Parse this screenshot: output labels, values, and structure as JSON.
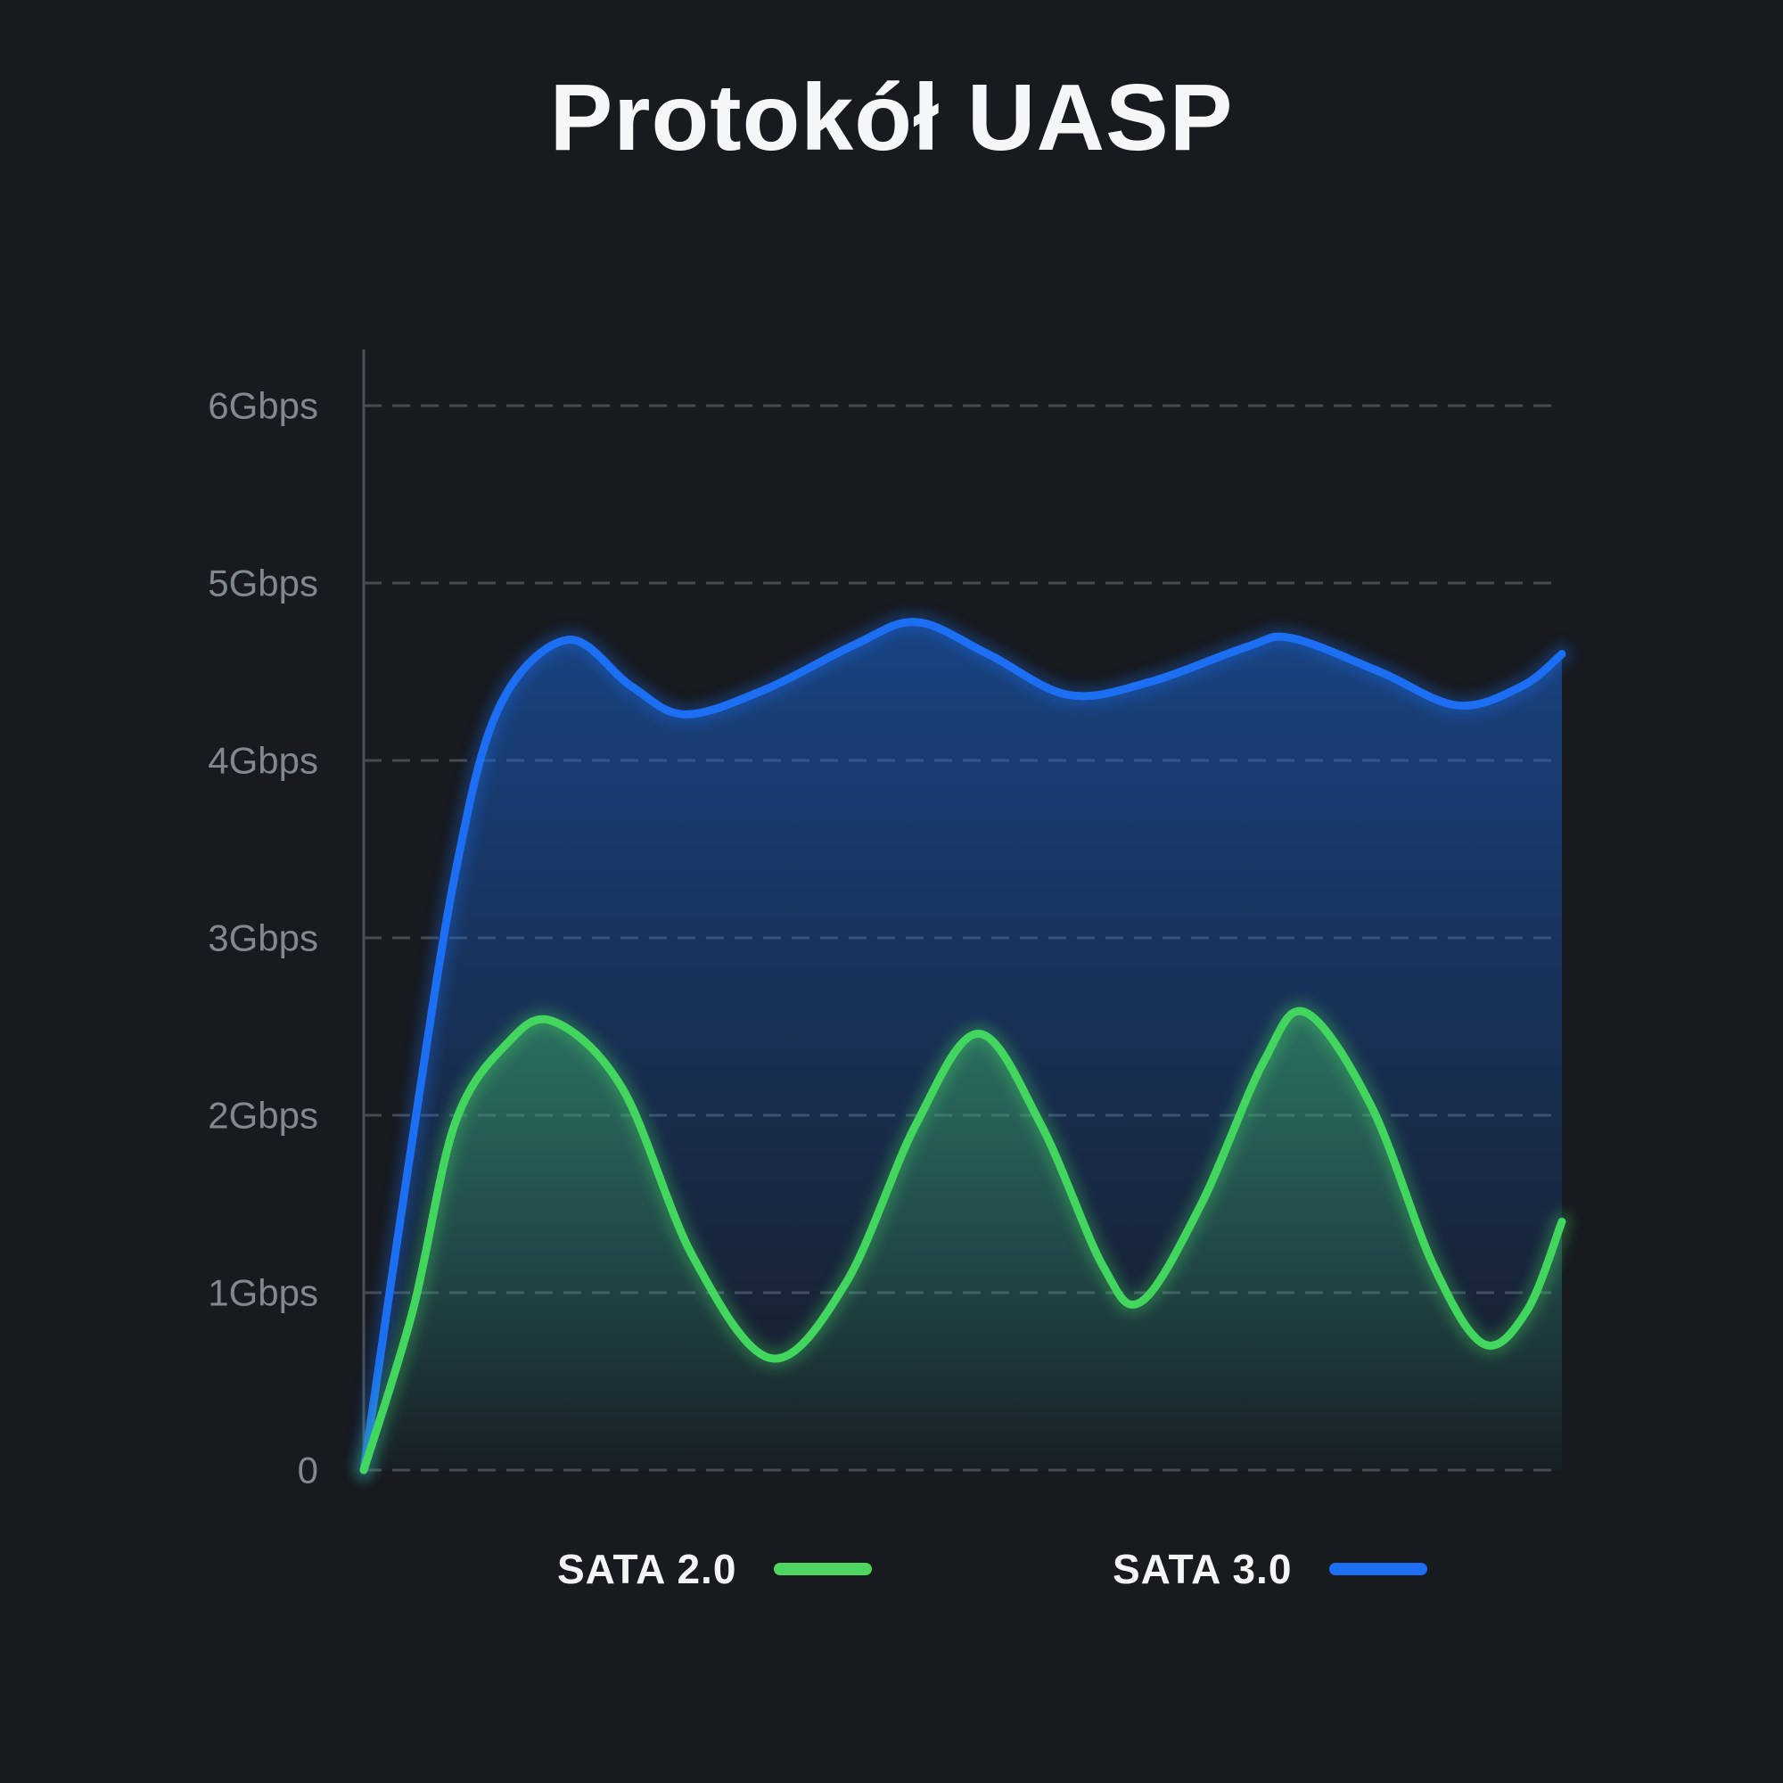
{
  "page": {
    "background": "#171a1f"
  },
  "title": "Protokół UASP",
  "legend": {
    "items": [
      {
        "label": "SATA 2.0",
        "swatch_color": "#4fd661"
      },
      {
        "label": "SATA 3.0",
        "swatch_color": "#1c6ff2"
      }
    ]
  },
  "chart_data": {
    "type": "area",
    "title": "Protokół UASP",
    "grid": {
      "style": "dashed-horizontal",
      "color": "#787d83"
    },
    "legend_position": "bottom",
    "y_axis": {
      "unit": "Gbps",
      "range": [
        0,
        6.33
      ],
      "ticks": [
        {
          "value": 6,
          "label": "6Gbps"
        },
        {
          "value": 5,
          "label": "5Gbps"
        },
        {
          "value": 4,
          "label": "4Gbps"
        },
        {
          "value": 3,
          "label": "3Gbps"
        },
        {
          "value": 2,
          "label": "2Gbps"
        },
        {
          "value": 1,
          "label": "1Gbps"
        },
        {
          "value": 0,
          "label": "0"
        }
      ]
    },
    "x_axis": {
      "ticks": [],
      "note": "no x labels shown"
    },
    "series": [
      {
        "name": "SATA 2.0",
        "color": "#43d65f",
        "fill_top": "rgba(62,175,105,0.50)",
        "fill_bottom": "rgba(62,175,105,0.02)",
        "unit": "Gbps",
        "points": [
          [
            0.0,
            0.0
          ],
          [
            0.041,
            0.9
          ],
          [
            0.076,
            1.95
          ],
          [
            0.119,
            2.4
          ],
          [
            0.158,
            2.53
          ],
          [
            0.216,
            2.15
          ],
          [
            0.275,
            1.2
          ],
          [
            0.34,
            0.63
          ],
          [
            0.402,
            1.05
          ],
          [
            0.461,
            1.95
          ],
          [
            0.513,
            2.46
          ],
          [
            0.565,
            1.95
          ],
          [
            0.617,
            1.15
          ],
          [
            0.649,
            0.95
          ],
          [
            0.699,
            1.5
          ],
          [
            0.751,
            2.3
          ],
          [
            0.786,
            2.58
          ],
          [
            0.841,
            2.05
          ],
          [
            0.893,
            1.15
          ],
          [
            0.935,
            0.71
          ],
          [
            0.971,
            0.9
          ],
          [
            1.0,
            1.4
          ]
        ]
      },
      {
        "name": "SATA 3.0",
        "color": "#1c6ff2",
        "fill_top": "rgba(26,100,210,0.55)",
        "fill_bottom": "rgba(26,100,210,0.03)",
        "unit": "Gbps",
        "points": [
          [
            0.0,
            0.0
          ],
          [
            0.037,
            1.7
          ],
          [
            0.076,
            3.35
          ],
          [
            0.113,
            4.3
          ],
          [
            0.17,
            4.68
          ],
          [
            0.223,
            4.42
          ],
          [
            0.268,
            4.26
          ],
          [
            0.335,
            4.4
          ],
          [
            0.409,
            4.65
          ],
          [
            0.461,
            4.78
          ],
          [
            0.521,
            4.6
          ],
          [
            0.588,
            4.37
          ],
          [
            0.655,
            4.44
          ],
          [
            0.737,
            4.64
          ],
          [
            0.774,
            4.69
          ],
          [
            0.848,
            4.5
          ],
          [
            0.913,
            4.31
          ],
          [
            0.967,
            4.42
          ],
          [
            1.0,
            4.6
          ]
        ]
      }
    ]
  }
}
